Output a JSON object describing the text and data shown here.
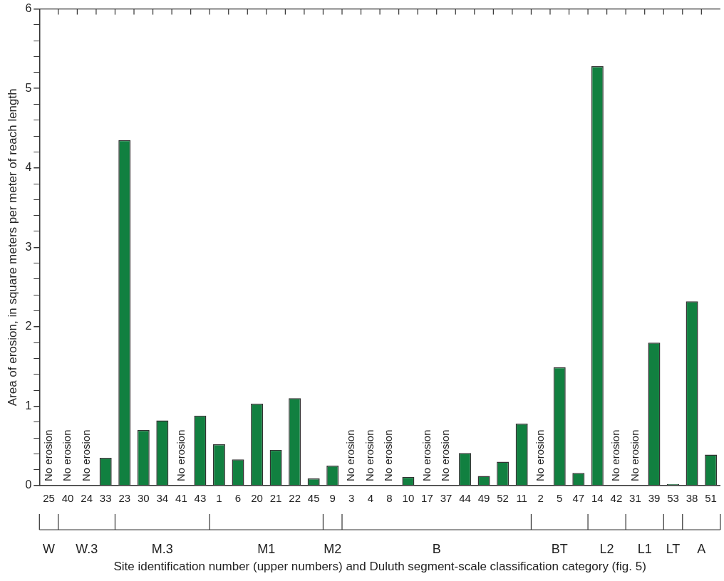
{
  "chart_data": {
    "type": "bar",
    "xlabel": "Site identification number (upper numbers) and Duluth segment-scale classification category (fig. 5)",
    "ylabel": "Area of erosion, in square meters per meter of reach length",
    "categories": [
      "25",
      "40",
      "24",
      "33",
      "23",
      "30",
      "34",
      "41",
      "43",
      "1",
      "6",
      "20",
      "21",
      "22",
      "45",
      "9",
      "3",
      "4",
      "8",
      "10",
      "17",
      "37",
      "44",
      "49",
      "52",
      "11",
      "2",
      "5",
      "47",
      "14",
      "42",
      "31",
      "39",
      "53",
      "38",
      "51"
    ],
    "values": [
      0,
      0,
      0,
      0.35,
      4.35,
      0.7,
      0.82,
      0,
      0.88,
      0.52,
      0.33,
      1.03,
      0.45,
      1.1,
      0.09,
      0.25,
      0,
      0,
      0,
      0.11,
      0,
      0,
      0.41,
      0.12,
      0.3,
      0.78,
      0,
      1.49,
      0.16,
      5.28,
      0,
      0,
      1.8,
      0.02,
      2.32,
      0.39
    ],
    "value_labels": [
      "No erosion",
      "No erosion",
      "No erosion",
      null,
      null,
      null,
      null,
      "No erosion",
      null,
      null,
      null,
      null,
      null,
      null,
      null,
      null,
      "No erosion",
      "No erosion",
      "No erosion",
      null,
      "No erosion",
      "No erosion",
      null,
      null,
      null,
      null,
      "No erosion",
      null,
      null,
      null,
      "No erosion",
      "No erosion",
      null,
      null,
      null,
      null
    ],
    "color": "#118040",
    "ylim": [
      0,
      6
    ],
    "yticks": [
      0,
      {
        "value": 0.2,
        "label": null
      },
      {
        "value": 0.4,
        "label": null
      },
      {
        "value": 0.6,
        "label": null
      },
      {
        "value": 0.8,
        "label": null
      },
      1,
      {
        "value": 1.2,
        "label": null
      },
      {
        "value": 1.4,
        "label": null
      },
      {
        "value": 1.6,
        "label": null
      },
      {
        "value": 1.8,
        "label": null
      },
      2,
      {
        "value": 2.2,
        "label": null
      },
      {
        "value": 2.4,
        "label": null
      },
      {
        "value": 2.6,
        "label": null
      },
      {
        "value": 2.8,
        "label": null
      },
      3,
      {
        "value": 3.2,
        "label": null
      },
      {
        "value": 3.4,
        "label": null
      },
      {
        "value": 3.6,
        "label": null
      },
      {
        "value": 3.8,
        "label": null
      },
      4,
      {
        "value": 4.2,
        "label": null
      },
      {
        "value": 4.4,
        "label": null
      },
      {
        "value": 4.6,
        "label": null
      },
      {
        "value": 4.8,
        "label": null
      },
      5,
      {
        "value": 5.2,
        "label": null
      },
      {
        "value": 5.4,
        "label": null
      },
      {
        "value": 5.6,
        "label": null
      },
      {
        "value": 5.8,
        "label": null
      },
      6
    ],
    "annotations": [
      "W",
      "W.3",
      "M.3",
      "M1",
      "M2",
      "B",
      "BT",
      "L2",
      "L1",
      "LT",
      "A"
    ],
    "grid": false,
    "legend": false
  }
}
